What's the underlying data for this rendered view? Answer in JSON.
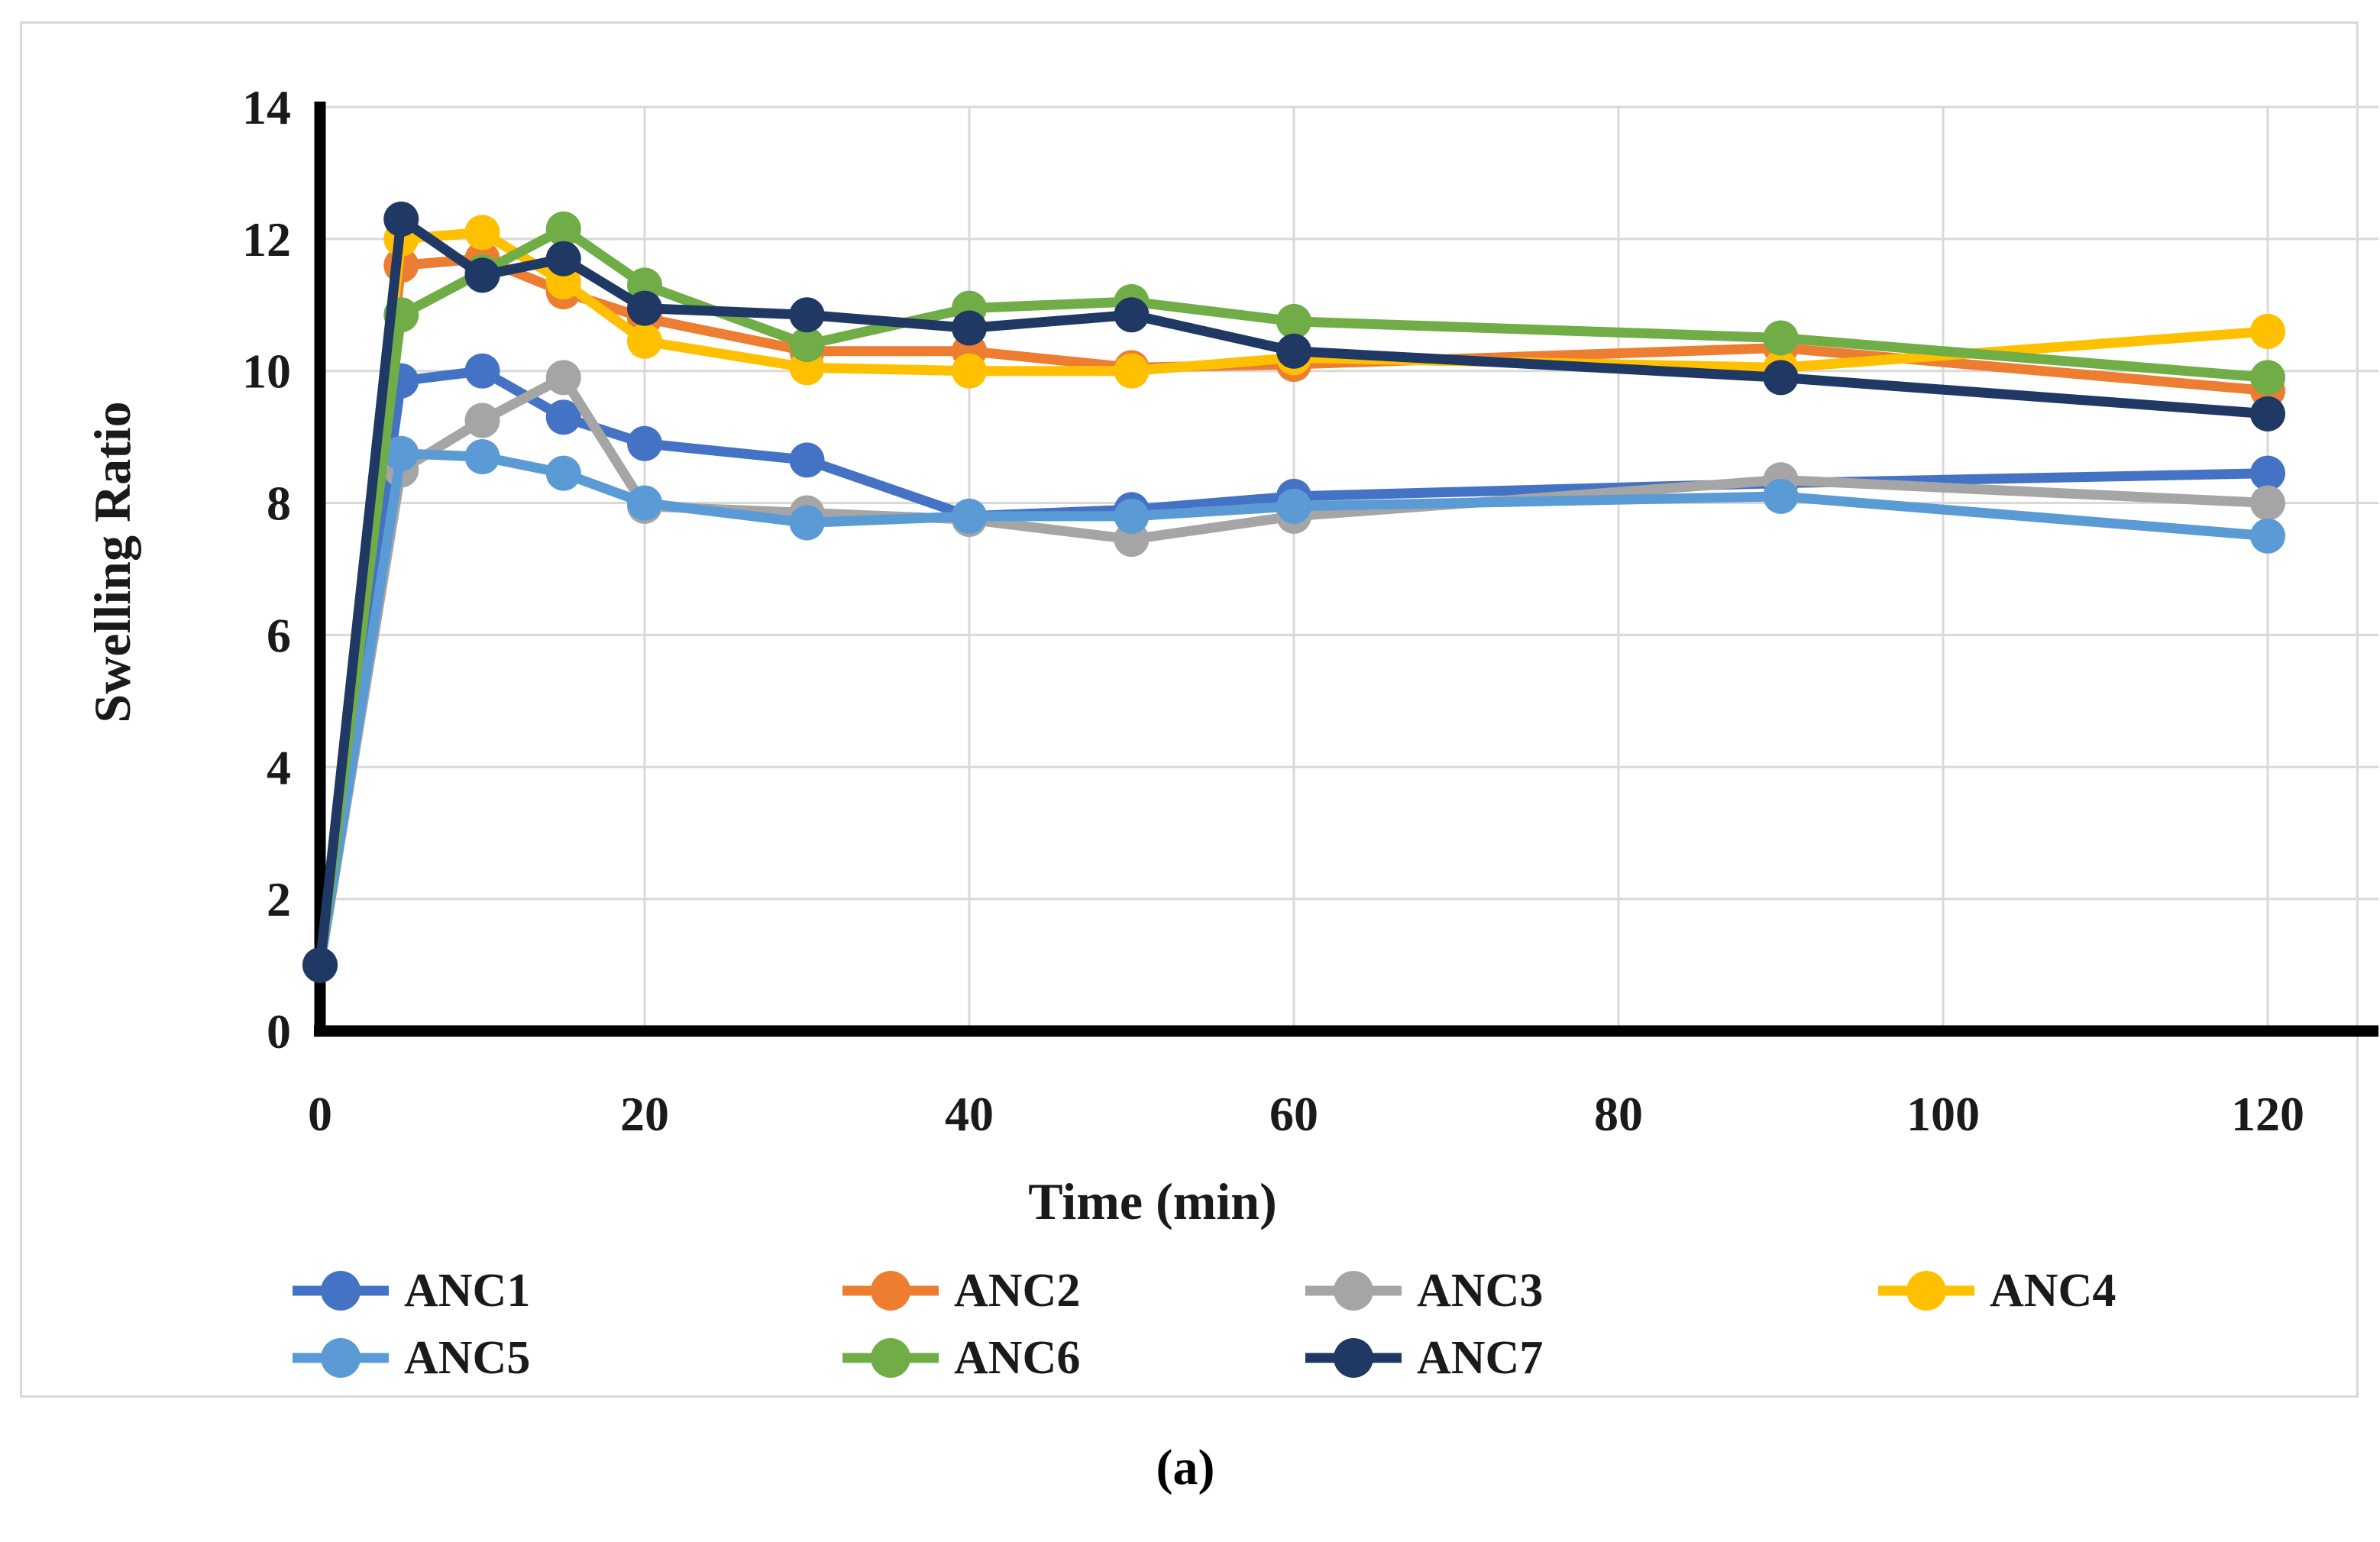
{
  "figure": {
    "caption": "(a)"
  },
  "chart_data": {
    "type": "line",
    "title": "",
    "xlabel": "Time (min)",
    "ylabel": "Swelling Ratio",
    "x": [
      0,
      5,
      10,
      15,
      20,
      30,
      40,
      50,
      60,
      90,
      120
    ],
    "x_ticks": [
      0,
      20,
      40,
      60,
      80,
      100,
      120
    ],
    "y_ticks": [
      0,
      2,
      4,
      6,
      8,
      10,
      12,
      14
    ],
    "xlim": [
      0,
      126.5
    ],
    "ylim": [
      0,
      14
    ],
    "grid": true,
    "legend_position": "bottom",
    "axis_color": "#000000",
    "gridline_color": "#d9d9d9",
    "frame_border_color": "#d9d9d9",
    "series": [
      {
        "name": "ANC1",
        "color": "#4472C4",
        "values": [
          1,
          9.85,
          10.0,
          9.3,
          8.9,
          8.65,
          7.8,
          7.9,
          8.1,
          8.3,
          8.45
        ]
      },
      {
        "name": "ANC2",
        "color": "#ED7D31",
        "values": [
          1,
          11.6,
          11.7,
          11.2,
          10.8,
          10.3,
          10.3,
          10.05,
          10.1,
          10.35,
          9.7
        ]
      },
      {
        "name": "ANC3",
        "color": "#A5A5A5",
        "values": [
          1,
          8.5,
          9.25,
          9.9,
          7.95,
          7.85,
          7.75,
          7.45,
          7.8,
          8.35,
          8.0
        ]
      },
      {
        "name": "ANC4",
        "color": "#FFC000",
        "values": [
          1,
          12.0,
          12.1,
          11.35,
          10.45,
          10.05,
          10.0,
          10.0,
          10.2,
          10.05,
          10.6
        ]
      },
      {
        "name": "ANC5",
        "color": "#5B9BD5",
        "values": [
          1,
          8.75,
          8.7,
          8.45,
          8.0,
          7.7,
          7.8,
          7.8,
          7.95,
          8.1,
          7.5
        ]
      },
      {
        "name": "ANC6",
        "color": "#70AD47",
        "values": [
          1,
          10.85,
          11.5,
          12.15,
          11.3,
          10.4,
          10.95,
          11.05,
          10.75,
          10.5,
          9.9
        ]
      },
      {
        "name": "ANC7",
        "color": "#1F3864",
        "values": [
          1,
          12.3,
          11.45,
          11.7,
          10.95,
          10.85,
          10.65,
          10.85,
          10.3,
          9.9,
          9.35
        ]
      }
    ]
  }
}
